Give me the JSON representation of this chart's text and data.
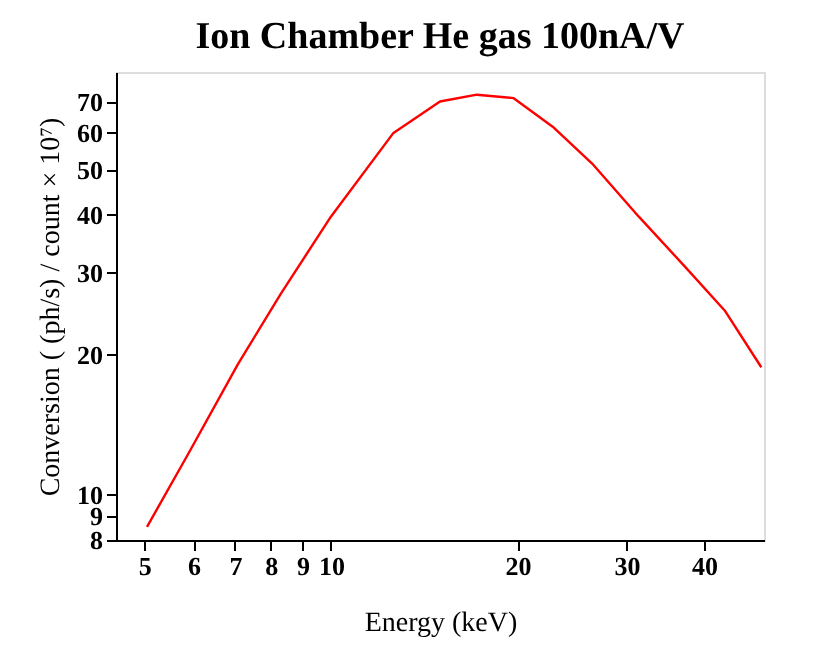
{
  "chart_data": {
    "type": "line",
    "title": "Ion Chamber  He gas  100nA/V",
    "xlabel": "Energy (keV)",
    "ylabel": "Conversion  ( (ph/s) / count   × 10⁷)",
    "log": "xy",
    "grid": false,
    "legend": false,
    "marker": "none",
    "line_style": "solid",
    "xlim": [
      4.5,
      50
    ],
    "ylim": [
      8,
      81
    ],
    "xticks": [
      5,
      6,
      7,
      8,
      9,
      10,
      20,
      30,
      40
    ],
    "yticks": [
      8,
      9,
      10,
      20,
      30,
      40,
      50,
      60,
      70
    ],
    "series": [
      {
        "color": "#ff0000",
        "x": [
          5.05,
          5.89,
          7.08,
          8.31,
          10.0,
          12.6,
          15.0,
          17.2,
          19.7,
          22.8,
          26.4,
          31.4,
          37.3,
          43.2,
          49.5
        ],
        "values": [
          8.54,
          12.27,
          19.1,
          27.1,
          39.6,
          59.8,
          70.0,
          72.4,
          71.2,
          61.8,
          51.5,
          39.6,
          30.9,
          24.9,
          18.8
        ]
      }
    ]
  }
}
